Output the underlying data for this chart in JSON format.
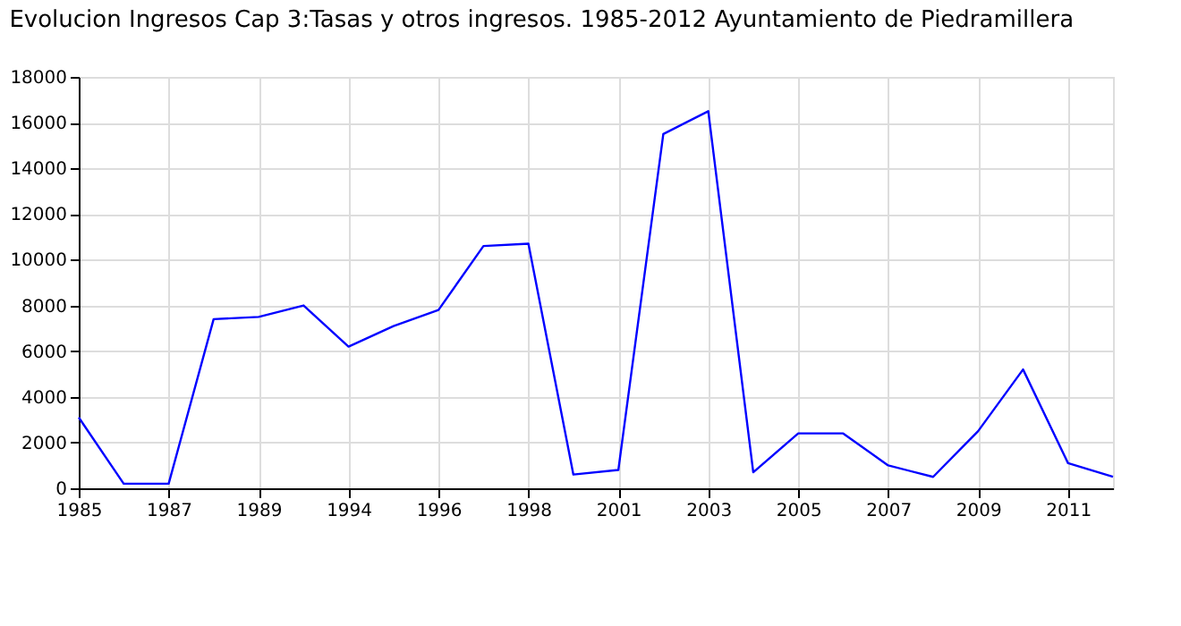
{
  "chart_data": {
    "type": "line",
    "title": "Evolucion Ingresos Cap 3:Tasas y otros ingresos. 1985-2012 Ayuntamiento de Piedramillera",
    "categories": [
      "1985",
      null,
      "1987",
      null,
      "1989",
      null,
      "1994",
      null,
      "1996",
      null,
      "1998",
      null,
      "2001",
      null,
      "2003",
      null,
      "2005",
      null,
      "2007",
      null,
      "2009",
      null,
      "2011",
      null
    ],
    "series": [
      {
        "color": "#0000ff",
        "values": [
          3100,
          200,
          200,
          7400,
          7500,
          8000,
          6200,
          7100,
          7800,
          10600,
          10700,
          600,
          800,
          15500,
          16500,
          700,
          2400,
          2400,
          1000,
          500,
          2500,
          5200,
          1100,
          500
        ]
      }
    ],
    "ylim": [
      0,
      18000
    ],
    "yticks": [
      0,
      2000,
      4000,
      6000,
      8000,
      10000,
      12000,
      14000,
      16000,
      18000
    ],
    "grid": true,
    "legend": false
  }
}
